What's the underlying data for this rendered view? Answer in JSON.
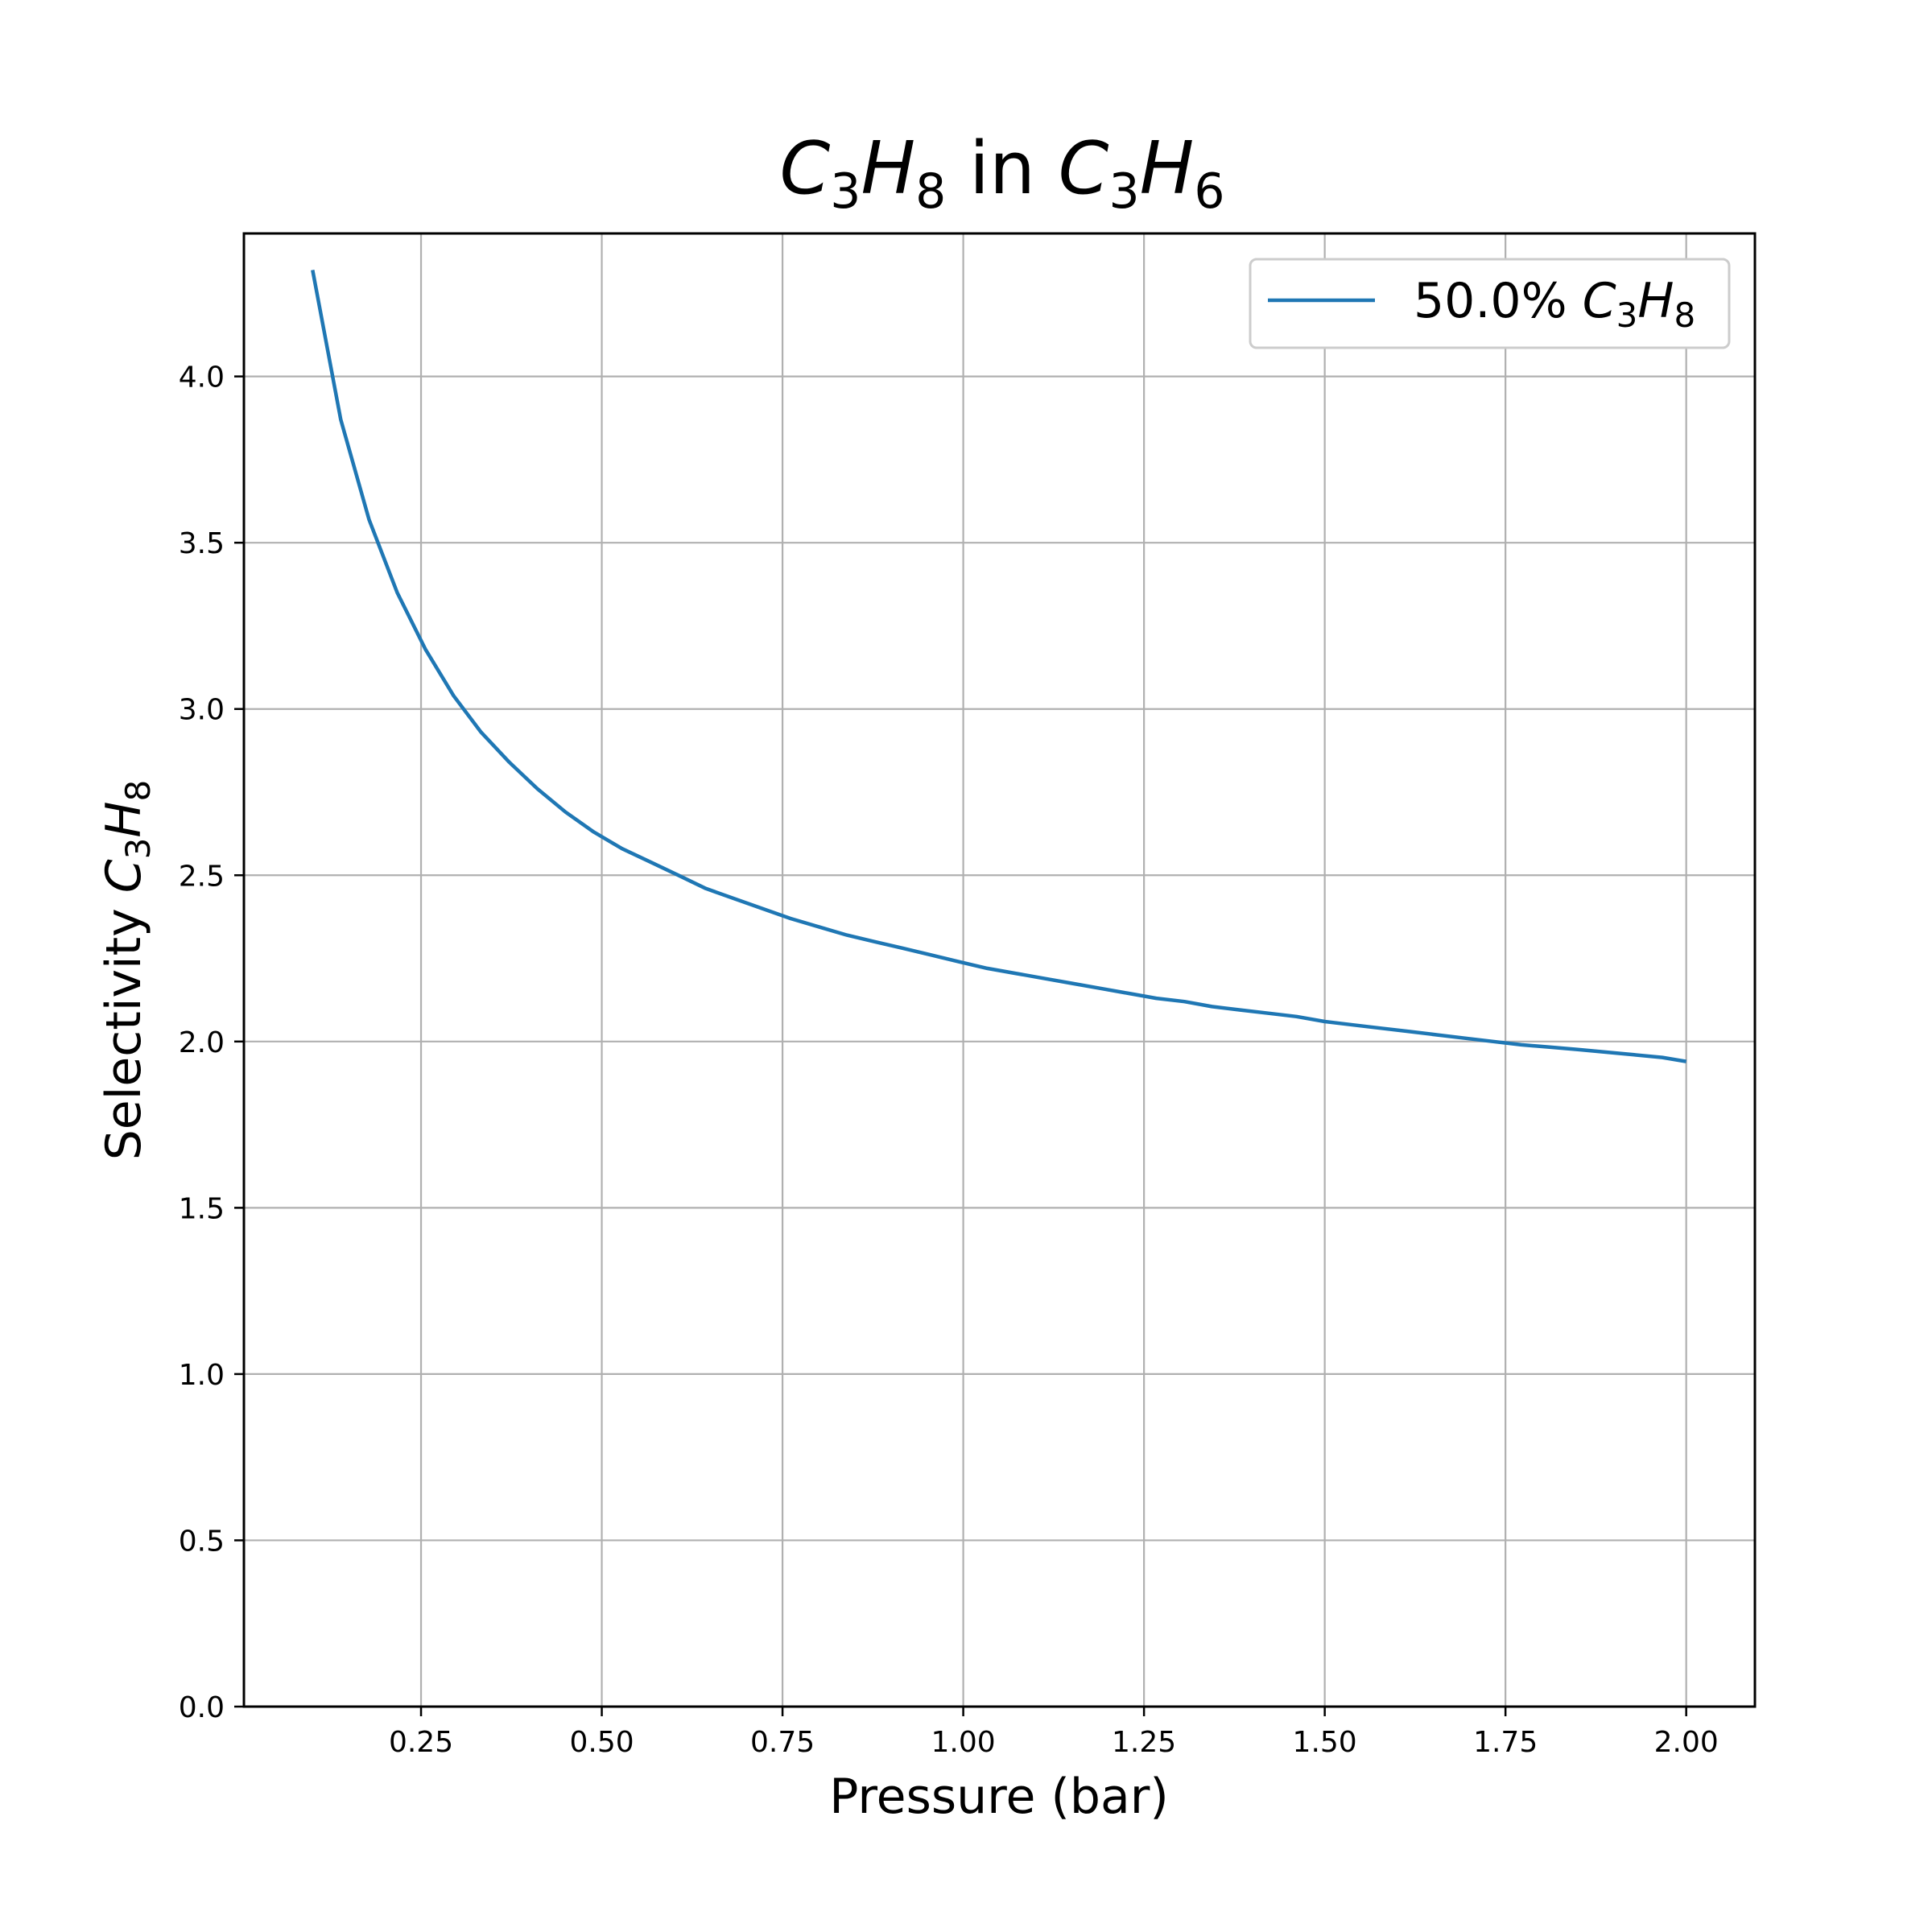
{
  "chart_data": {
    "type": "line",
    "title": {
      "sym1": "C",
      "sub1": "3",
      "sym2": "H",
      "sub2": "8",
      "mid": " in ",
      "sym3": "C",
      "sub3": "3",
      "sym4": "H",
      "sub4": "6"
    },
    "xlabel": "Pressure (bar)",
    "ylabel": {
      "prefix": "Selectivity ",
      "sym1": "C",
      "sub1": "3",
      "sym2": "H",
      "sub2": "8"
    },
    "xlim": [
      0.005,
      2.095
    ],
    "ylim": [
      0.0,
      4.43
    ],
    "xticks": [
      "0.25",
      "0.50",
      "0.75",
      "1.00",
      "1.25",
      "1.50",
      "1.75",
      "2.00"
    ],
    "yticks": [
      "0.0",
      "0.5",
      "1.0",
      "1.5",
      "2.0",
      "2.5",
      "3.0",
      "3.5",
      "4.0"
    ],
    "grid": true,
    "legend_position": "upper-right",
    "colors": {
      "series": "#1f77b4",
      "grid": "#b0b0b0",
      "axes": "#000000",
      "legend_border": "#cccccc"
    },
    "series": [
      {
        "name": {
          "prefix": "50.0% ",
          "sym1": "C",
          "sub1": "3",
          "sym2": "H",
          "sub2": "8"
        },
        "x": [
          0.1,
          0.139,
          0.178,
          0.217,
          0.256,
          0.295,
          0.333,
          0.372,
          0.411,
          0.45,
          0.489,
          0.528,
          0.567,
          0.606,
          0.644,
          0.683,
          0.722,
          0.761,
          0.8,
          0.839,
          0.878,
          0.917,
          0.956,
          0.994,
          1.033,
          1.072,
          1.111,
          1.15,
          1.189,
          1.228,
          1.267,
          1.306,
          1.344,
          1.383,
          1.422,
          1.461,
          1.5,
          1.539,
          1.578,
          1.617,
          1.656,
          1.694,
          1.733,
          1.772,
          1.811,
          1.85,
          1.889,
          1.928,
          1.967,
          2.0
        ],
        "y": [
          4.32,
          3.87,
          3.57,
          3.35,
          3.18,
          3.04,
          2.93,
          2.84,
          2.76,
          2.69,
          2.63,
          2.58,
          2.54,
          2.5,
          2.46,
          2.43,
          2.4,
          2.37,
          2.345,
          2.32,
          2.3,
          2.28,
          2.26,
          2.24,
          2.22,
          2.205,
          2.19,
          2.175,
          2.16,
          2.145,
          2.13,
          2.12,
          2.105,
          2.095,
          2.085,
          2.075,
          2.06,
          2.05,
          2.04,
          2.03,
          2.02,
          2.01,
          2.0,
          1.99,
          1.983,
          1.976,
          1.968,
          1.96,
          1.952,
          1.94
        ]
      }
    ]
  }
}
